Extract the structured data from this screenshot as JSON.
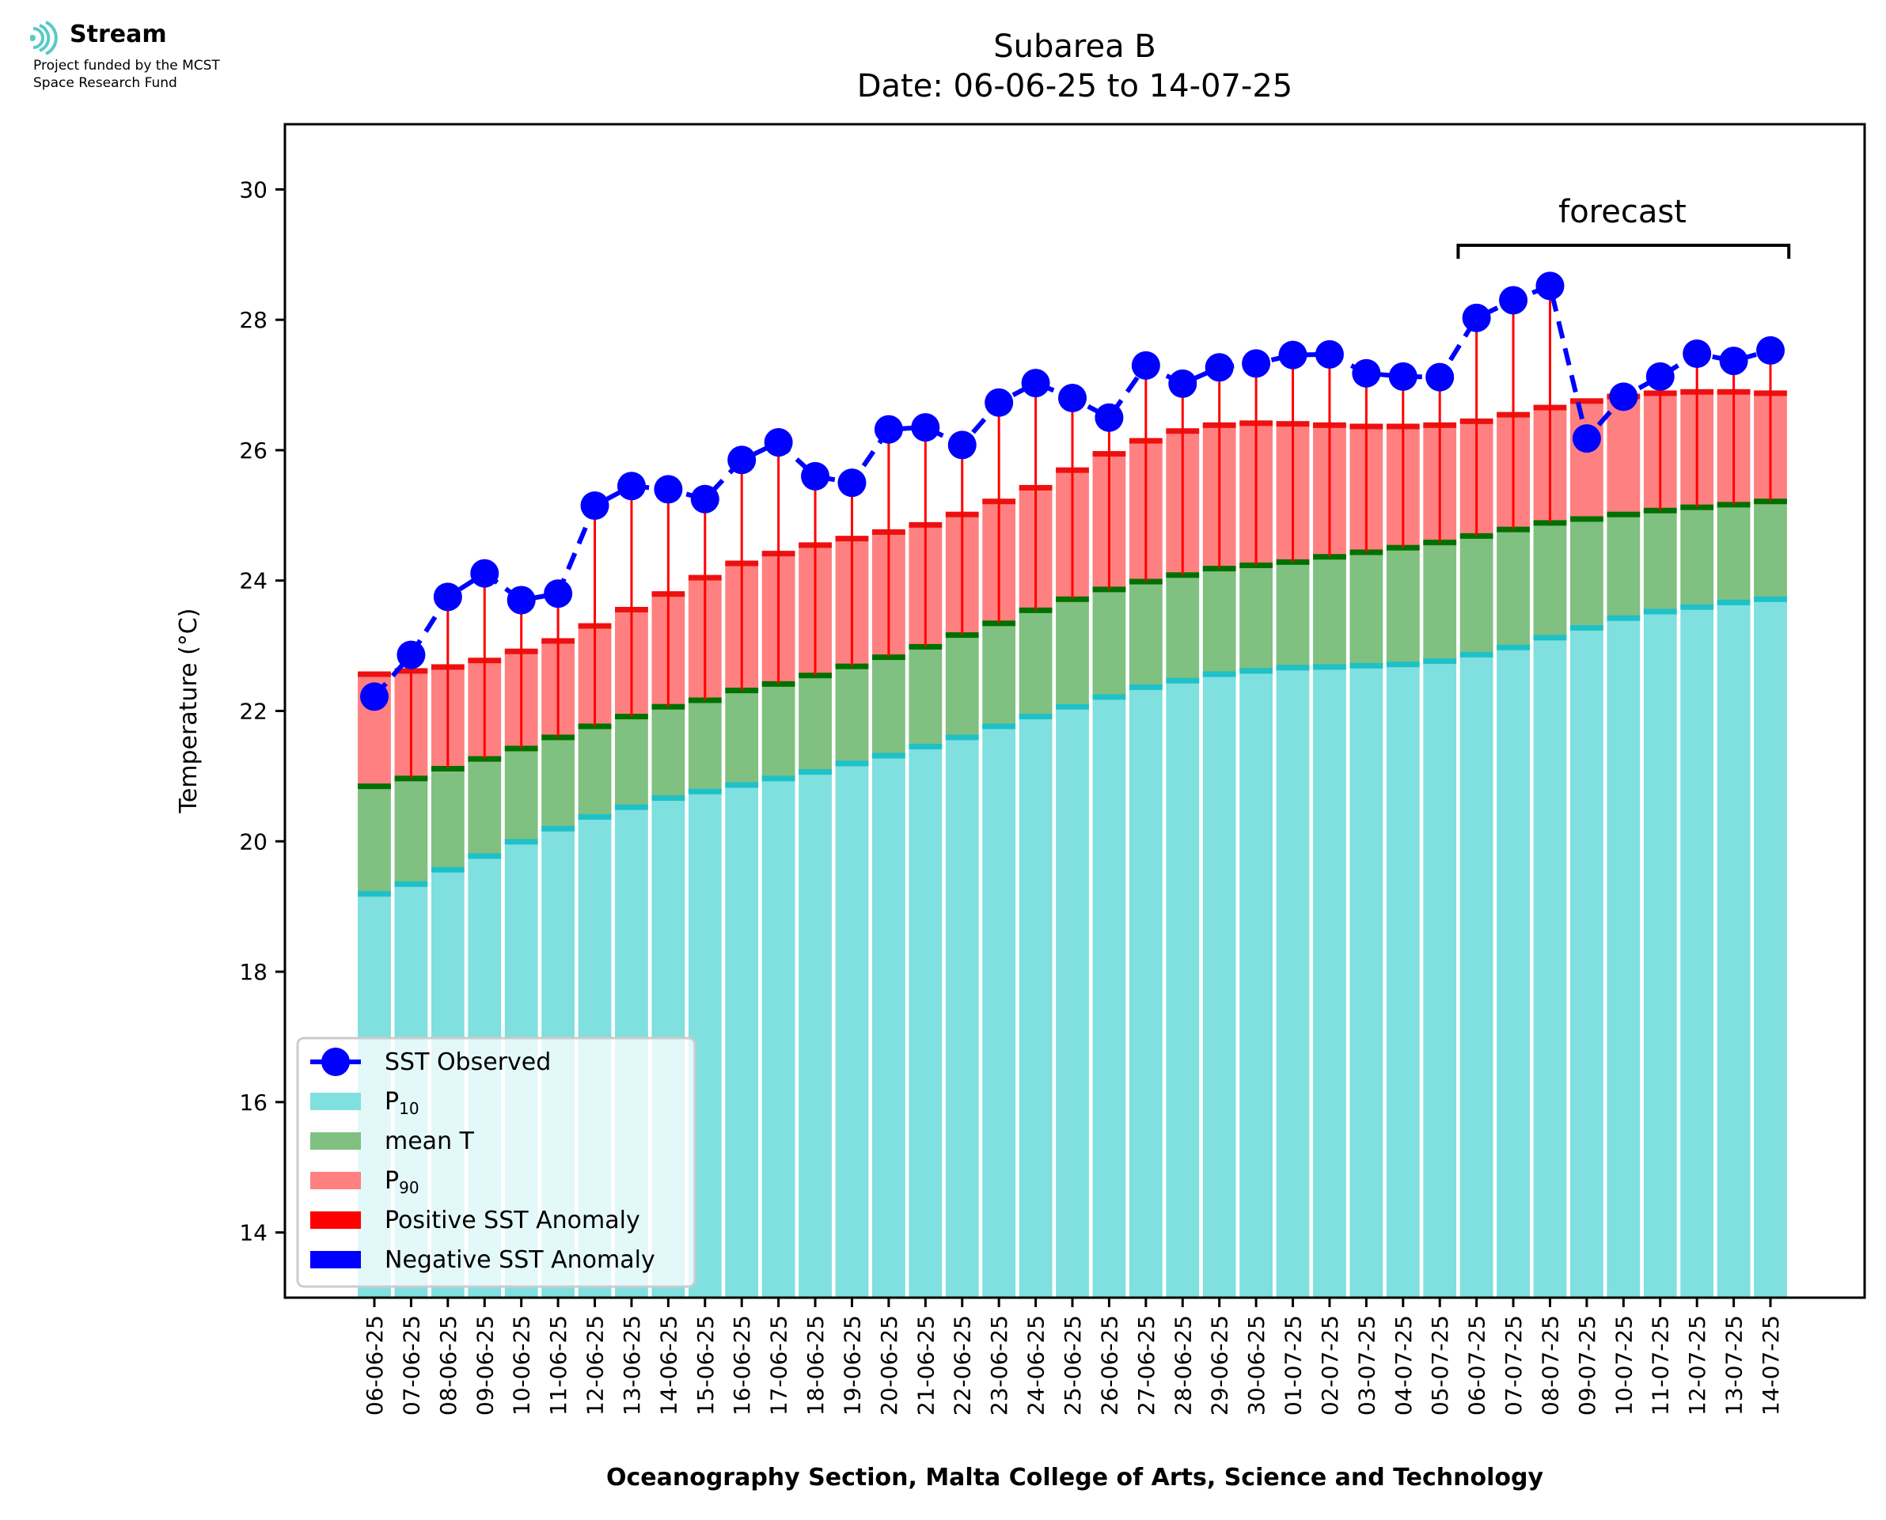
{
  "logo": {
    "name": "Stream",
    "subtitle_line1": "Project funded by the MCST",
    "subtitle_line2": "Space Research Fund"
  },
  "chart_data": {
    "type": "bar",
    "title": "Subarea B",
    "subtitle": "Date: 06-06-25 to 14-07-25",
    "xlabel": "Oceanography Section, Malta College of Arts, Science and Technology",
    "ylabel": "Temperature (°C)",
    "ylim": [
      13,
      31
    ],
    "yticks": [
      14,
      16,
      18,
      20,
      22,
      24,
      26,
      28,
      30
    ],
    "grid": false,
    "legend_position": "bottom-left",
    "annotation": "forecast",
    "forecast_range": [
      "06-07-25",
      "14-07-25"
    ],
    "categories": [
      "06-06-25",
      "07-06-25",
      "08-06-25",
      "09-06-25",
      "10-06-25",
      "11-06-25",
      "12-06-25",
      "13-06-25",
      "14-06-25",
      "15-06-25",
      "16-06-25",
      "17-06-25",
      "18-06-25",
      "19-06-25",
      "20-06-25",
      "21-06-25",
      "22-06-25",
      "23-06-25",
      "24-06-25",
      "25-06-25",
      "26-06-25",
      "27-06-25",
      "28-06-25",
      "29-06-25",
      "30-06-25",
      "01-07-25",
      "02-07-25",
      "03-07-25",
      "04-07-25",
      "05-07-25",
      "06-07-25",
      "07-07-25",
      "08-07-25",
      "09-07-25",
      "10-07-25",
      "11-07-25",
      "12-07-25",
      "13-07-25",
      "14-07-25"
    ],
    "series": [
      {
        "name": "P10",
        "kind": "bar",
        "color": "#80dfdf",
        "edge_color": "#1ec1c8",
        "values": [
          19.2,
          19.35,
          19.57,
          19.78,
          20.0,
          20.2,
          20.38,
          20.53,
          20.67,
          20.77,
          20.87,
          20.97,
          21.07,
          21.2,
          21.32,
          21.46,
          21.6,
          21.77,
          21.92,
          22.07,
          22.22,
          22.37,
          22.47,
          22.57,
          22.62,
          22.67,
          22.68,
          22.7,
          22.72,
          22.77,
          22.87,
          22.98,
          23.13,
          23.28,
          23.43,
          23.53,
          23.6,
          23.67,
          23.72
        ]
      },
      {
        "name": "mean T",
        "kind": "bar",
        "color": "#80c080",
        "edge_color": "#007000",
        "values": [
          20.85,
          20.97,
          21.12,
          21.27,
          21.43,
          21.6,
          21.77,
          21.92,
          22.07,
          22.17,
          22.32,
          22.42,
          22.55,
          22.69,
          22.83,
          22.99,
          23.17,
          23.35,
          23.55,
          23.72,
          23.87,
          23.99,
          24.09,
          24.19,
          24.24,
          24.29,
          24.37,
          24.44,
          24.51,
          24.59,
          24.69,
          24.79,
          24.89,
          24.95,
          25.02,
          25.08,
          25.13,
          25.17,
          25.22
        ]
      },
      {
        "name": "P90",
        "kind": "bar",
        "color": "#ff8080",
        "edge_color": "#ee1010",
        "values": [
          22.57,
          22.62,
          22.68,
          22.78,
          22.92,
          23.08,
          23.31,
          23.56,
          23.8,
          24.05,
          24.27,
          24.42,
          24.55,
          24.65,
          24.75,
          24.86,
          25.02,
          25.22,
          25.43,
          25.7,
          25.95,
          26.15,
          26.3,
          26.39,
          26.42,
          26.41,
          26.39,
          26.37,
          26.37,
          26.39,
          26.45,
          26.55,
          26.66,
          26.76,
          26.83,
          26.88,
          26.9,
          26.9,
          26.88
        ]
      },
      {
        "name": "SST Observed",
        "kind": "line",
        "color": "#0000ff",
        "values": [
          22.22,
          22.86,
          23.75,
          24.11,
          23.7,
          23.8,
          25.15,
          25.45,
          25.4,
          25.25,
          25.85,
          26.12,
          25.6,
          25.5,
          26.32,
          26.35,
          26.08,
          26.73,
          27.03,
          26.8,
          26.5,
          27.3,
          27.02,
          27.27,
          27.33,
          27.46,
          27.47,
          27.18,
          27.13,
          27.12,
          28.03,
          28.3,
          28.52,
          26.18,
          26.82,
          27.13,
          27.48,
          27.37,
          27.53
        ]
      }
    ],
    "legend": [
      "SST Observed",
      "P10",
      "mean T",
      "P90",
      "Positive SST Anomaly",
      "Negative SST Anomaly"
    ],
    "anomaly_colors": {
      "positive": "#ff0000",
      "negative": "#0000ff"
    }
  }
}
